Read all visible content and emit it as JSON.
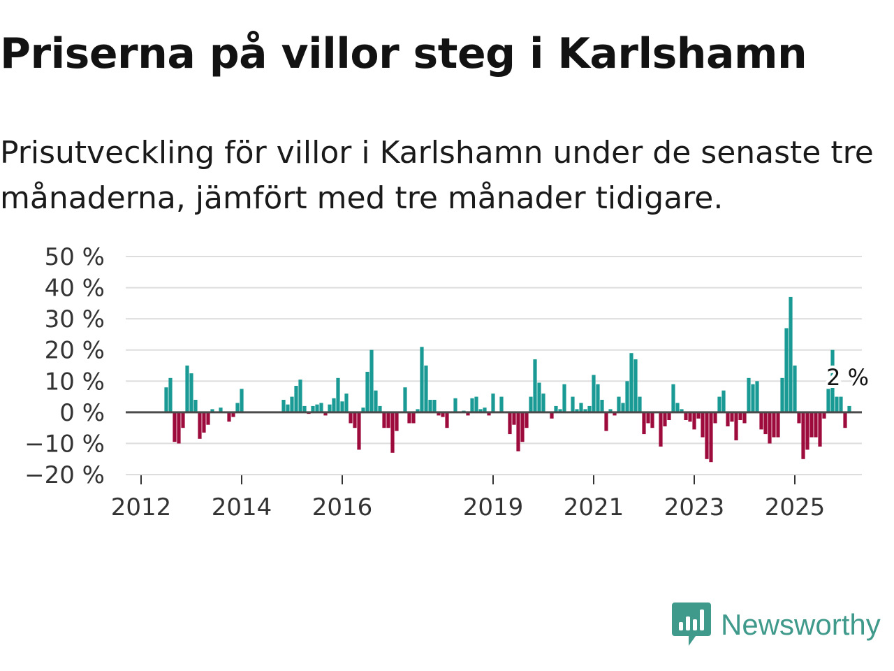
{
  "title": "Priserna på villor steg i Karlshamn",
  "subtitle": "Prisutveckling för villor i Karlshamn under de senaste tre månaderna, jämfört med tre månader tidigare.",
  "brand": {
    "name": "Newsworthy",
    "color": "#3f9a8b"
  },
  "colors": {
    "positive": "#1a9a94",
    "negative": "#9c0b3c",
    "zero_line": "#4a4a4a"
  },
  "chart_data": {
    "type": "bar",
    "title": "",
    "xlabel": "",
    "ylabel": "",
    "ylim": [
      -20,
      50
    ],
    "yticks": [
      {
        "value": 50,
        "label": "50 %"
      },
      {
        "value": 40,
        "label": "40 %"
      },
      {
        "value": 30,
        "label": "30 %"
      },
      {
        "value": 20,
        "label": "20 %"
      },
      {
        "value": 10,
        "label": "10 %"
      },
      {
        "value": 0,
        "label": "0 %"
      },
      {
        "value": -10,
        "label": "−10 %"
      },
      {
        "value": -20,
        "label": "−20 %"
      }
    ],
    "xticks": [
      {
        "year": 2012,
        "label": "2012"
      },
      {
        "year": 2014,
        "label": "2014"
      },
      {
        "year": 2016,
        "label": "2016"
      },
      {
        "year": 2019,
        "label": "2019"
      },
      {
        "year": 2021,
        "label": "2021"
      },
      {
        "year": 2023,
        "label": "2023"
      },
      {
        "year": 2025,
        "label": "2025"
      }
    ],
    "x_start": "2012-01",
    "annotation": {
      "label": "2 %",
      "value": 2
    },
    "values": [
      null,
      null,
      null,
      null,
      null,
      null,
      8,
      11,
      -9.5,
      -10,
      -5,
      15,
      12.5,
      4,
      -8.5,
      -6.5,
      -4,
      1,
      null,
      1.5,
      null,
      -3,
      -1.5,
      3,
      7.5,
      null,
      null,
      null,
      null,
      null,
      null,
      null,
      null,
      null,
      4,
      2.5,
      5,
      8.5,
      10.5,
      2,
      -0.5,
      2,
      2.5,
      3,
      -1,
      2.5,
      4.5,
      11,
      3.5,
      6,
      -3.5,
      -5,
      -12,
      1.5,
      13,
      20,
      7,
      2,
      -5,
      -5,
      -13,
      -6,
      null,
      8,
      -3.5,
      -3.5,
      1,
      21,
      15,
      4,
      4,
      -1,
      -1.5,
      -5,
      null,
      4.5,
      null,
      0.5,
      -1,
      4.5,
      5,
      1,
      1.5,
      -1,
      6,
      null,
      5,
      null,
      -7,
      -4,
      -12.5,
      -9.5,
      -5,
      5,
      17,
      9.5,
      6,
      null,
      -2,
      2,
      1,
      9,
      null,
      5,
      1,
      3,
      1,
      2,
      12,
      9,
      4,
      -6,
      1,
      -1,
      5,
      3,
      10,
      19,
      17,
      5,
      -7,
      -3.5,
      -5,
      null,
      -11,
      -4.5,
      -2.5,
      9,
      3,
      1,
      -2.5,
      -3,
      -5.5,
      -2,
      -8,
      -15,
      -16,
      -3.5,
      5,
      7,
      -4.5,
      -3,
      -9,
      -2.5,
      -3.5,
      11,
      9,
      10,
      -5.5,
      -7,
      -10,
      -8,
      -8,
      11,
      27,
      37,
      15,
      -3.5,
      -15,
      -12,
      -8,
      -8,
      -11,
      -2,
      7.5,
      20,
      5,
      5,
      -5,
      2
    ]
  }
}
